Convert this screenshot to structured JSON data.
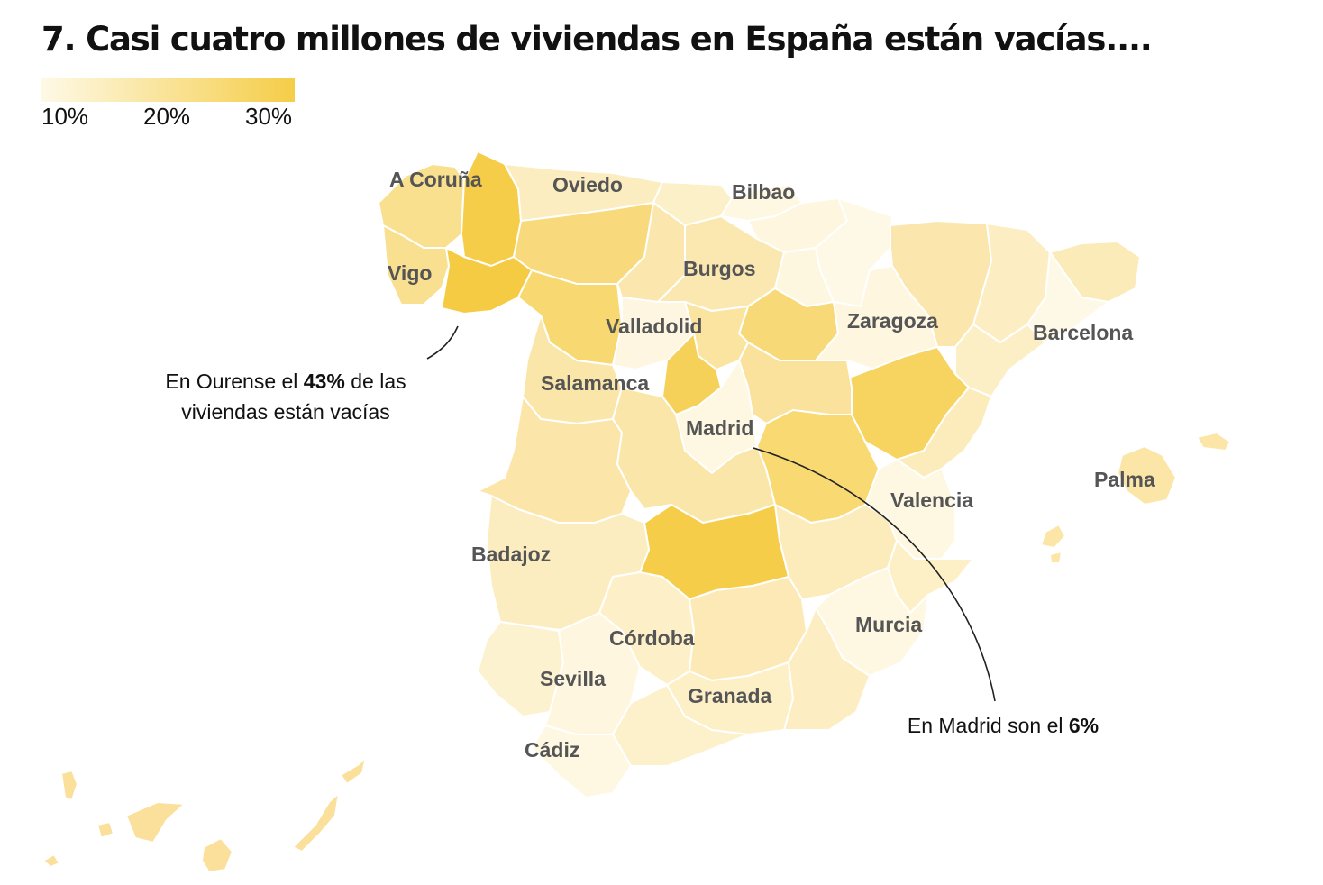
{
  "title": "7. Casi cuatro millones de viviendas en España están vacías....",
  "legend": {
    "ticks": [
      "10%",
      "20%",
      "30%"
    ],
    "color_low": "#fef9e6",
    "color_high": "#f5cd48"
  },
  "cities": {
    "a_coruna": "A Coruña",
    "oviedo": "Oviedo",
    "bilbao": "Bilbao",
    "vigo": "Vigo",
    "burgos": "Burgos",
    "valladolid": "Valladolid",
    "zaragoza": "Zaragoza",
    "barcelona": "Barcelona",
    "salamanca": "Salamanca",
    "madrid": "Madrid",
    "valencia": "Valencia",
    "palma": "Palma",
    "badajoz": "Badajoz",
    "murcia": "Murcia",
    "cordoba": "Córdoba",
    "sevilla": "Sevilla",
    "granada": "Granada",
    "cadiz": "Cádiz"
  },
  "annotations": {
    "ourense": {
      "line1_pre": "En Ourense el ",
      "line1_bold": "43%",
      "line1_post": " de las",
      "line2": "viviendas están vacías"
    },
    "madrid": {
      "pre": "En Madrid son el ",
      "bold": "6%"
    }
  }
}
